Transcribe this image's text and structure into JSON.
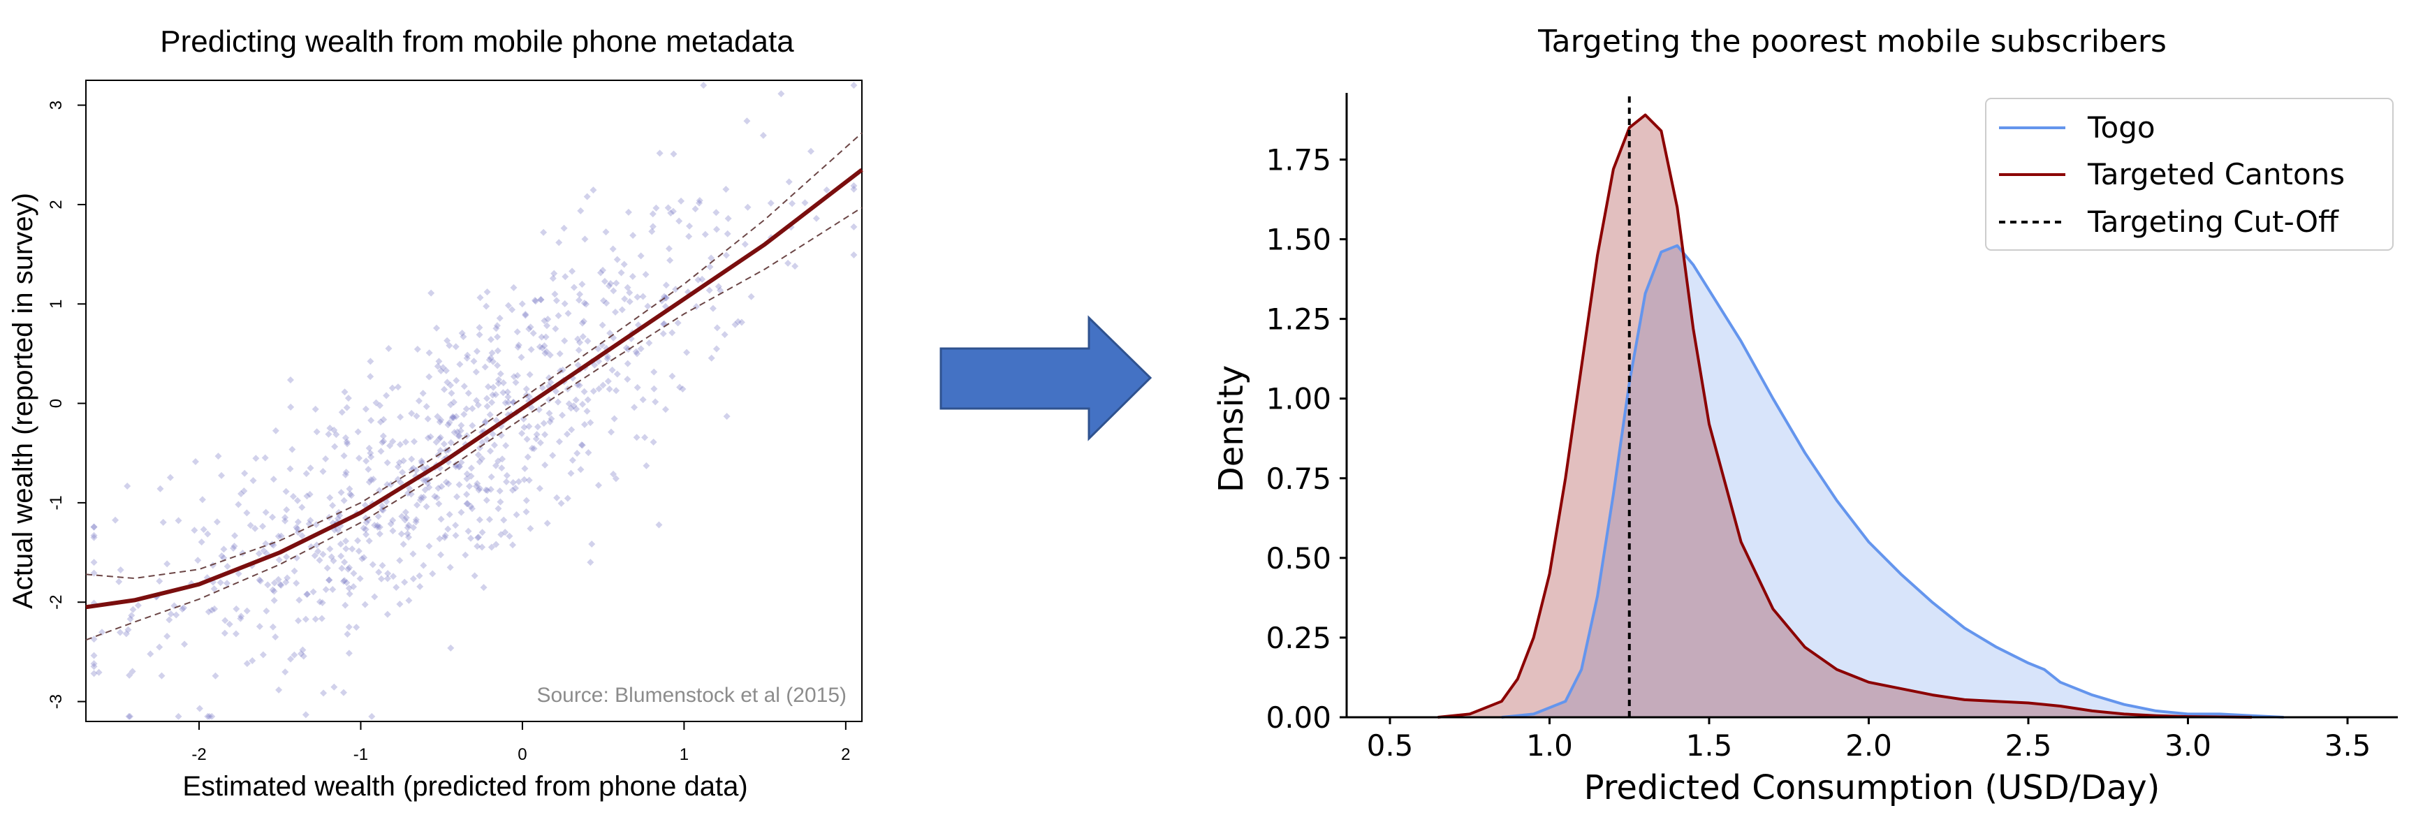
{
  "colors": {
    "points": "#7070c0",
    "fit_line": "#7a0e0e",
    "ci_line": "#6b4545",
    "arrow_fill": "#4472c4",
    "arrow_edge": "#2f528f",
    "togo": "#6495ed",
    "targeted": "#8b0000",
    "axis": "#000000",
    "source_text": "#8c8c8c"
  },
  "chart_data": [
    {
      "type": "scatter",
      "title": "Predicting wealth from mobile phone metadata",
      "xlabel": "Estimated wealth (predicted from phone data)",
      "ylabel": "Actual wealth (reported in survey)",
      "xlim": [
        -2.7,
        2.1
      ],
      "ylim": [
        -3.2,
        3.25
      ],
      "xticks": [
        -2,
        -1,
        0,
        1,
        2
      ],
      "xtick_labels": [
        "-2",
        "-1",
        "0",
        "1",
        "2"
      ],
      "yticks": [
        -3,
        -2,
        -1,
        0,
        1,
        2,
        3
      ],
      "ytick_labels": [
        "-3",
        "-2",
        "-1",
        "0",
        "1",
        "2",
        "3"
      ],
      "annotation": "Source: Blumenstock et al (2015)",
      "n_points": 900,
      "points_note": "approx. 900 survey respondents; actual ≈ fitted curve + noise (sd ≈ 0.7)",
      "fit_curve": {
        "x": [
          -2.7,
          -2.4,
          -2.0,
          -1.5,
          -1.0,
          -0.5,
          0.0,
          0.5,
          1.0,
          1.5,
          2.1
        ],
        "y": [
          -2.05,
          -1.98,
          -1.82,
          -1.5,
          -1.1,
          -0.6,
          -0.05,
          0.5,
          1.05,
          1.6,
          2.35
        ]
      },
      "ci_upper": {
        "x": [
          -2.7,
          -2.4,
          -2.0,
          -1.5,
          -1.0,
          -0.5,
          0.0,
          0.5,
          1.0,
          1.5,
          2.1
        ],
        "y": [
          -1.72,
          -1.76,
          -1.67,
          -1.38,
          -1.0,
          -0.5,
          0.05,
          0.62,
          1.2,
          1.85,
          2.72
        ]
      },
      "ci_lower": {
        "x": [
          -2.7,
          -2.4,
          -2.0,
          -1.5,
          -1.0,
          -0.5,
          0.0,
          0.5,
          1.0,
          1.5,
          2.1
        ],
        "y": [
          -2.38,
          -2.2,
          -1.97,
          -1.62,
          -1.2,
          -0.7,
          -0.15,
          0.38,
          0.9,
          1.35,
          1.97
        ]
      }
    },
    {
      "type": "area",
      "title": "Targeting the poorest mobile subscribers",
      "xlabel": "Predicted Consumption (USD/Day)",
      "ylabel": "Density",
      "xlim": [
        0.35,
        3.6
      ],
      "ylim": [
        0,
        1.97
      ],
      "xticks": [
        0.5,
        1.0,
        1.5,
        2.0,
        2.5,
        3.0,
        3.5
      ],
      "xtick_labels": [
        "0.5",
        "1.0",
        "1.5",
        "2.0",
        "2.5",
        "3.0",
        "3.5"
      ],
      "yticks": [
        0,
        0.25,
        0.5,
        0.75,
        1.0,
        1.25,
        1.5,
        1.75
      ],
      "ytick_labels": [
        "0.00",
        "0.25",
        "0.50",
        "0.75",
        "1.00",
        "1.25",
        "1.50",
        "1.75"
      ],
      "cutoff": 1.25,
      "legend_position": "top-right",
      "legend": [
        "Togo",
        "Targeted Cantons",
        "Targeting Cut-Off"
      ],
      "series": [
        {
          "name": "Togo",
          "x": [
            0.85,
            0.95,
            1.05,
            1.1,
            1.15,
            1.2,
            1.25,
            1.3,
            1.35,
            1.4,
            1.45,
            1.5,
            1.6,
            1.7,
            1.8,
            1.9,
            2.0,
            2.1,
            2.2,
            2.3,
            2.4,
            2.5,
            2.55,
            2.6,
            2.7,
            2.8,
            2.9,
            3.0,
            3.1,
            3.2,
            3.3
          ],
          "y": [
            0.0,
            0.01,
            0.05,
            0.15,
            0.38,
            0.7,
            1.05,
            1.33,
            1.46,
            1.48,
            1.42,
            1.34,
            1.18,
            1.0,
            0.83,
            0.68,
            0.55,
            0.45,
            0.36,
            0.28,
            0.22,
            0.17,
            0.15,
            0.11,
            0.07,
            0.04,
            0.02,
            0.01,
            0.01,
            0.005,
            0.0
          ]
        },
        {
          "name": "Targeted Cantons",
          "x": [
            0.65,
            0.75,
            0.85,
            0.9,
            0.95,
            1.0,
            1.05,
            1.1,
            1.15,
            1.2,
            1.25,
            1.3,
            1.35,
            1.4,
            1.45,
            1.5,
            1.6,
            1.7,
            1.8,
            1.9,
            2.0,
            2.1,
            2.2,
            2.3,
            2.4,
            2.5,
            2.6,
            2.7,
            2.8,
            2.9,
            3.0,
            3.2
          ],
          "y": [
            0.0,
            0.01,
            0.05,
            0.12,
            0.25,
            0.45,
            0.75,
            1.1,
            1.45,
            1.72,
            1.85,
            1.89,
            1.84,
            1.6,
            1.22,
            0.92,
            0.55,
            0.34,
            0.22,
            0.15,
            0.11,
            0.09,
            0.07,
            0.055,
            0.05,
            0.045,
            0.035,
            0.02,
            0.01,
            0.005,
            0.002,
            0.0
          ]
        }
      ]
    }
  ]
}
